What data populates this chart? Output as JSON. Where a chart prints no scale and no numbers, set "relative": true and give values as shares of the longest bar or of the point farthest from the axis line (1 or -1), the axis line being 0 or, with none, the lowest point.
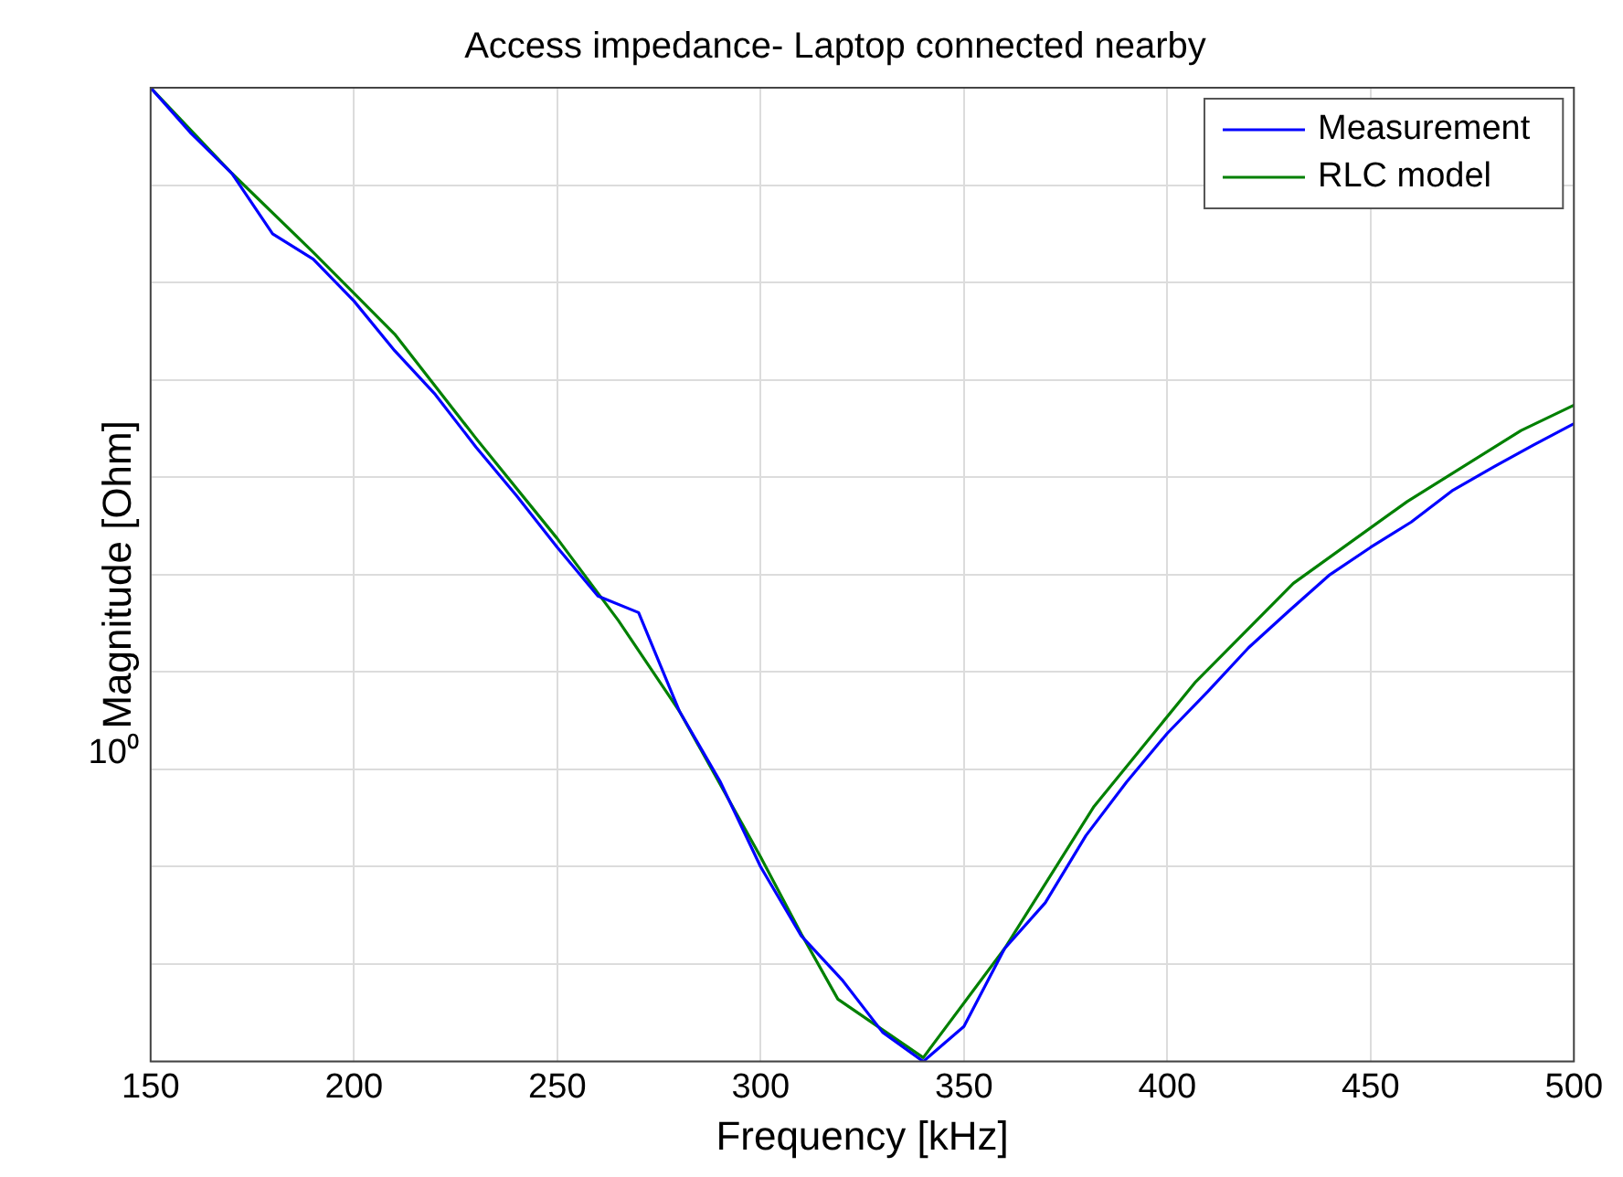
{
  "chart_data": {
    "type": "line",
    "title": "Access impedance- Laptop connected nearby",
    "xlabel": "Frequency [kHz]",
    "ylabel": "Magnitude [Ohm]",
    "relative": true,
    "grid": true,
    "legend": "top right",
    "marker": "none",
    "line_style": "solid",
    "xlim": [
      150,
      500
    ],
    "xticks": [
      150,
      200,
      250,
      300,
      350,
      400,
      450,
      500
    ],
    "annotations": [
      "10⁰"
    ],
    "series": [
      {
        "name": "Measurement",
        "color": "#0000ff",
        "x": [
          150,
          160,
          170,
          180,
          190,
          200,
          210,
          220,
          230,
          240,
          250,
          260,
          270,
          280,
          290,
          300,
          310,
          320,
          330,
          340,
          350,
          360,
          370,
          380,
          390,
          400,
          410,
          420,
          430,
          440,
          450,
          460,
          470,
          480,
          490,
          500
        ],
        "values": [
          1,
          0.953,
          0.912,
          0.85,
          0.824,
          0.781,
          0.73,
          0.685,
          0.631,
          0.581,
          0.528,
          0.478,
          0.461,
          0.36,
          0.288,
          0.2,
          0.129,
          0.084,
          0.03,
          0,
          0.036,
          0.116,
          0.163,
          0.232,
          0.287,
          0.337,
          0.38,
          0.425,
          0.463,
          0.5,
          0.528,
          0.554,
          0.586,
          0.61,
          0.633,
          0.655
        ]
      },
      {
        "name": "RLC model",
        "color": "#008000",
        "x": [
          150,
          170,
          190,
          210,
          230,
          250,
          265,
          280,
          300,
          310,
          319,
          340,
          360,
          382,
          407,
          431,
          459,
          487,
          500
        ],
        "values": [
          1,
          0.912,
          0.831,
          0.747,
          0.64,
          0.537,
          0.453,
          0.36,
          0.21,
          0.131,
          0.064,
          0.004,
          0.116,
          0.262,
          0.39,
          0.491,
          0.575,
          0.648,
          0.674
        ]
      }
    ]
  }
}
